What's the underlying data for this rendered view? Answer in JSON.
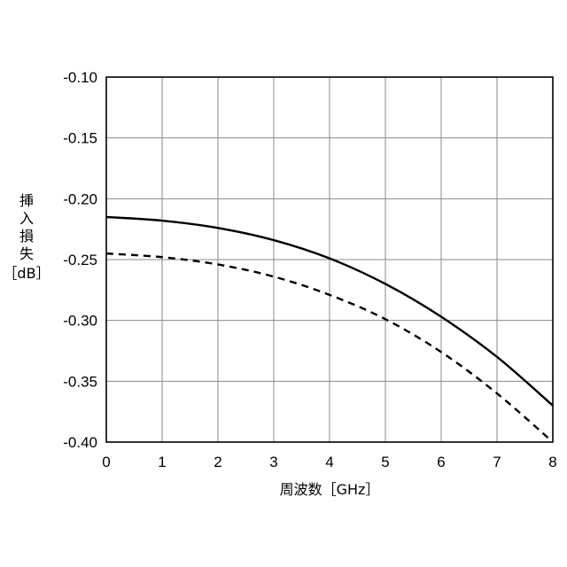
{
  "chart_data": {
    "type": "line",
    "title": "",
    "xlabel": "周波数［GHz］",
    "ylabel_lines": [
      "挿",
      "入",
      "損",
      "失",
      "［dB］"
    ],
    "xlim": [
      0,
      8
    ],
    "ylim": [
      -0.4,
      -0.1
    ],
    "x_ticks": [
      0,
      1,
      2,
      3,
      4,
      5,
      6,
      7,
      8
    ],
    "y_ticks": [
      -0.1,
      -0.15,
      -0.2,
      -0.25,
      -0.3,
      -0.35,
      -0.4
    ],
    "x_tick_labels": [
      "0",
      "1",
      "2",
      "3",
      "4",
      "5",
      "6",
      "7",
      "8"
    ],
    "y_tick_labels": [
      "-0.10",
      "-0.15",
      "-0.20",
      "-0.25",
      "-0.30",
      "-0.35",
      "-0.40"
    ],
    "grid": true,
    "legend": "none",
    "series": [
      {
        "style": "solid",
        "color": "#000000",
        "x": [
          0,
          1,
          2,
          3,
          4,
          5,
          6,
          7,
          8
        ],
        "y": [
          -0.215,
          -0.218,
          -0.224,
          -0.234,
          -0.249,
          -0.27,
          -0.297,
          -0.33,
          -0.37
        ]
      },
      {
        "style": "dashed",
        "color": "#000000",
        "x": [
          0,
          1,
          2,
          3,
          4,
          5,
          6,
          7,
          8
        ],
        "y": [
          -0.245,
          -0.248,
          -0.254,
          -0.264,
          -0.279,
          -0.299,
          -0.326,
          -0.36,
          -0.4
        ]
      }
    ]
  }
}
